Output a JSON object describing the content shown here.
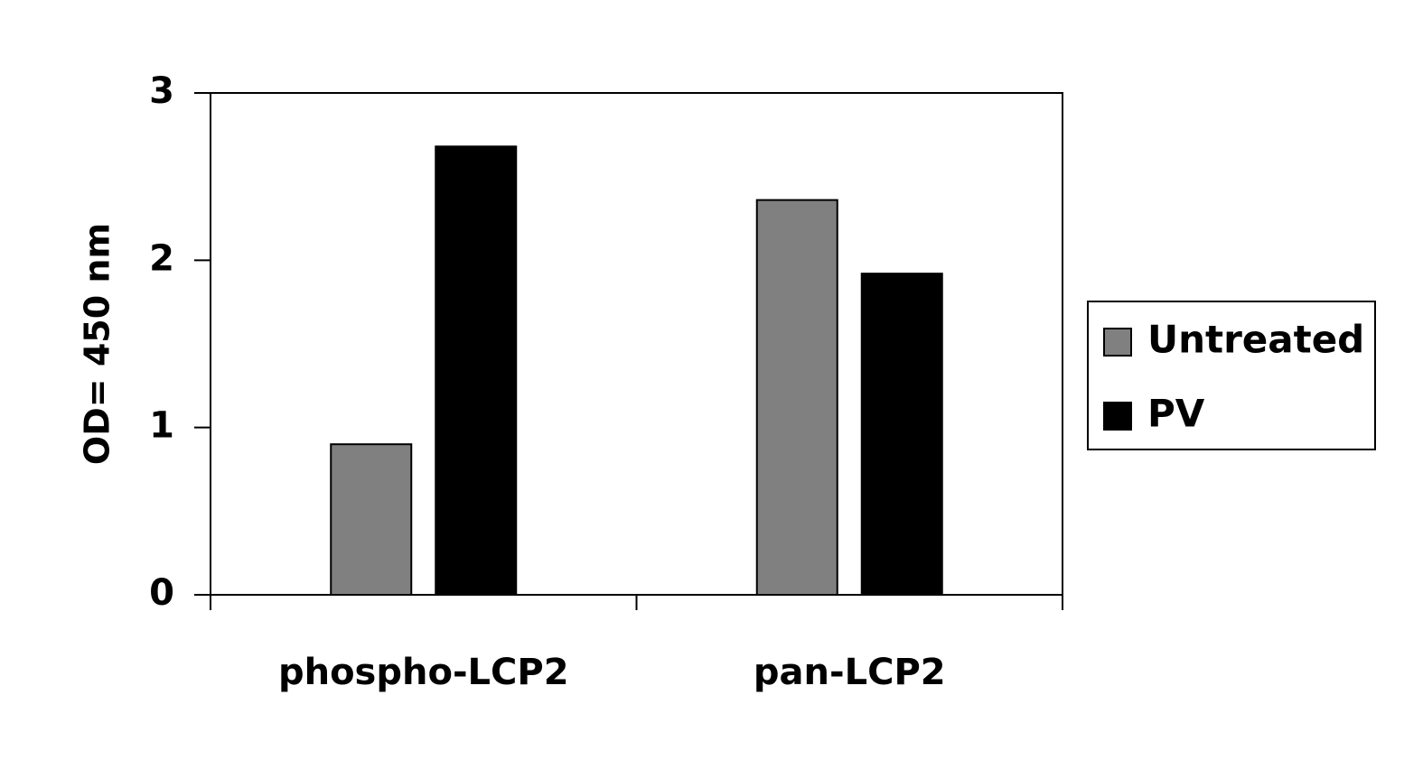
{
  "chart_data": {
    "type": "bar",
    "y_label": "OD= 450 nm",
    "categories": [
      "phospho-LCP2",
      "pan-LCP2"
    ],
    "series": [
      {
        "name": "Untreated",
        "color": "#808080",
        "values": [
          0.9,
          2.36
        ]
      },
      {
        "name": "PV",
        "color": "#000000",
        "values": [
          2.68,
          1.92
        ]
      }
    ],
    "ylim": [
      0,
      3
    ],
    "yticks": [
      0,
      1,
      2,
      3
    ],
    "grid": false,
    "legend": "right"
  }
}
